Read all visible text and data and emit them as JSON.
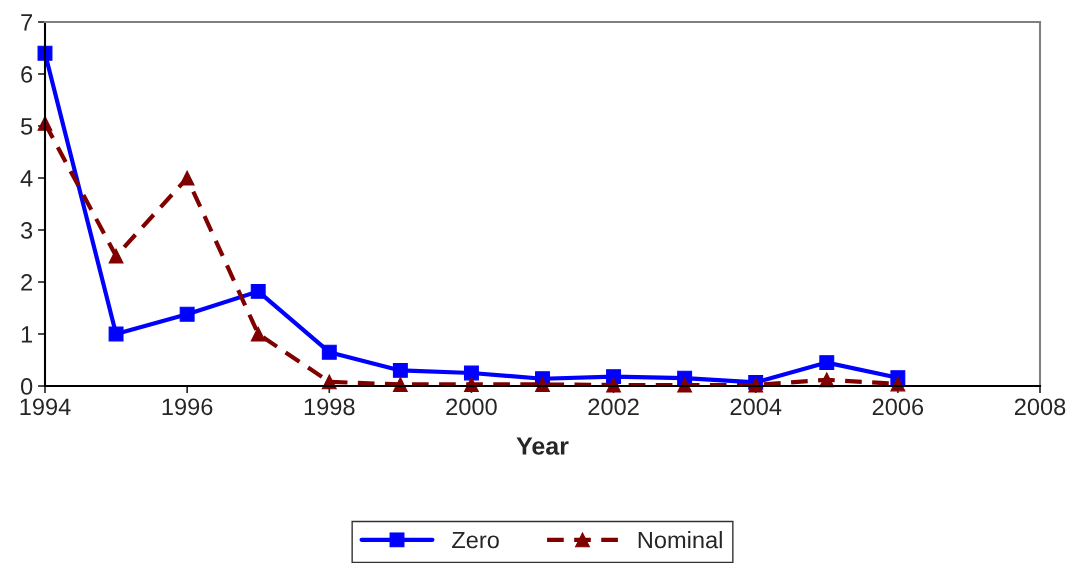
{
  "chart_data": {
    "type": "line",
    "xlabel": "Year",
    "x": [
      1994,
      1995,
      1996,
      1997,
      1998,
      1999,
      2000,
      2001,
      2002,
      2003,
      2004,
      2005,
      2006
    ],
    "series": [
      {
        "name": "Zero",
        "color": "#0000ff",
        "marker": "square",
        "line_style": "solid",
        "values": [
          6.4,
          1.0,
          1.38,
          1.82,
          0.65,
          0.3,
          0.25,
          0.14,
          0.18,
          0.15,
          0.07,
          0.45,
          0.16
        ]
      },
      {
        "name": "Nominal",
        "color": "#800000",
        "marker": "triangle",
        "line_style": "dashed",
        "values": [
          5.05,
          2.5,
          4.0,
          1.0,
          0.08,
          0.03,
          0.03,
          0.03,
          0.02,
          0.02,
          0.02,
          0.12,
          0.04
        ]
      }
    ],
    "xlim": [
      1994,
      2008
    ],
    "xticks": [
      1994,
      1996,
      1998,
      2000,
      2002,
      2004,
      2006,
      2008
    ],
    "ylim": [
      0,
      7
    ],
    "yticks": [
      0,
      1,
      2,
      3,
      4,
      5,
      6,
      7
    ],
    "grid": false,
    "legend": "bottom"
  }
}
